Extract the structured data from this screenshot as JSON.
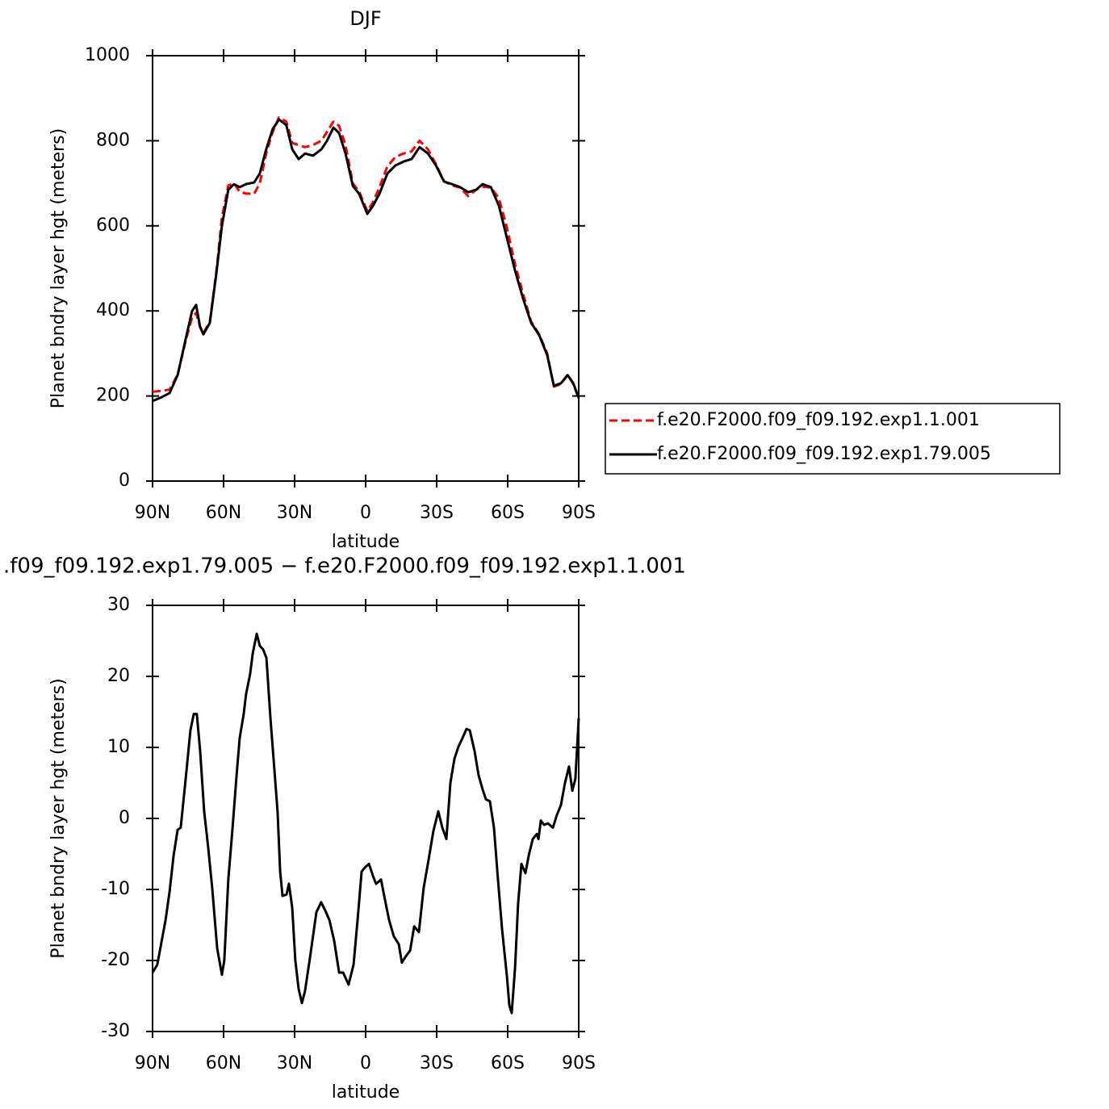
{
  "chart_data": [
    {
      "type": "line",
      "title": "DJF",
      "xlabel": "latitude",
      "ylabel": "Planet bndry layer hgt (meters)",
      "x": [
        90,
        86.2,
        82.8,
        79.4,
        76.0,
        73.3,
        71.6,
        69.9,
        68.5,
        65.8,
        63.1,
        60.7,
        58.0,
        55.6,
        53.2,
        50.5,
        47.1,
        44.7,
        42.0,
        39.3,
        36.6,
        33.5,
        31.0,
        28.3,
        25.6,
        22.2,
        18.7,
        16.4,
        13.6,
        11.2,
        8.5,
        5.4,
        2.7,
        -0.7,
        -3.1,
        -5.8,
        -9.2,
        -12.6,
        -16.0,
        -19.4,
        -22.8,
        -26.3,
        -29.7,
        -33.1,
        -36.5,
        -39.9,
        -43.3,
        -46.7,
        -49.4,
        -52.9,
        -56.3,
        -59.7,
        -63.1,
        -66.5,
        -69.9,
        -73.3,
        -76.7,
        -79.5,
        -82.5,
        -85.3,
        -87.7,
        -90
      ],
      "xlim": [
        90,
        -90
      ],
      "xticks": [
        {
          "value": 90,
          "label": "90N"
        },
        {
          "value": 60,
          "label": "60N"
        },
        {
          "value": 30,
          "label": "30N"
        },
        0,
        {
          "value": -30,
          "label": "30S"
        },
        {
          "value": -60,
          "label": "60S"
        },
        {
          "value": -90,
          "label": "90S"
        }
      ],
      "ylim": [
        0,
        1000
      ],
      "yticks": [
        0,
        200,
        400,
        600,
        800,
        1000
      ],
      "legend": "right",
      "series": [
        {
          "name": "f.e20.F2000.f09_f09.192.exp1.1.001",
          "color": "#ff0000",
          "line_style": "dashed",
          "values": [
            210,
            212,
            215,
            250,
            330,
            385,
            395,
            362,
            348,
            375,
            490,
            620,
            695,
            700,
            680,
            676,
            675,
            700,
            770,
            820,
            855,
            845,
            795,
            790,
            785,
            790,
            800,
            820,
            845,
            835,
            790,
            700,
            680,
            635,
            655,
            690,
            740,
            762,
            770,
            775,
            800,
            780,
            745,
            705,
            695,
            690,
            670,
            685,
            692,
            690,
            665,
            595,
            510,
            440,
            375,
            345,
            300,
            222,
            228,
            250,
            228,
            195
          ]
        },
        {
          "name": "f.e20.F2000.f09_f09.192.exp1.79.005",
          "color": "#000000",
          "line_style": "solid",
          "values": [
            188,
            197,
            207,
            249,
            334,
            400,
            414,
            362,
            345,
            372,
            486,
            600,
            685,
            698,
            691,
            698,
            702,
            723,
            780,
            827,
            850,
            837,
            780,
            757,
            770,
            765,
            780,
            799,
            831,
            818,
            770,
            694,
            675,
            628,
            647,
            675,
            723,
            742,
            751,
            757,
            785,
            770,
            742,
            704,
            698,
            691,
            679,
            685,
            698,
            691,
            647,
            571,
            495,
            429,
            372,
            343,
            296,
            224,
            230,
            249,
            230,
            195
          ]
        }
      ]
    },
    {
      "type": "line",
      "title": ".f09_f09.192.exp1.79.005 − f.e20.F2000.f09_f09.192.exp1.1.001",
      "xlabel": "latitude",
      "ylabel": "Planet bndry layer hgt (meters)",
      "x": [
        90,
        88.0,
        84.5,
        82.8,
        81.1,
        79.4,
        78.1,
        76.0,
        74.0,
        72.6,
        71.3,
        69.9,
        68.2,
        66.5,
        64.8,
        62.7,
        60.7,
        59.7,
        58.0,
        56.2,
        54.5,
        53.2,
        51.5,
        50.5,
        48.8,
        47.7,
        46.0,
        44.7,
        43.3,
        41.9,
        40.2,
        38.5,
        37.2,
        36.1,
        35.1,
        33.4,
        32.4,
        31.0,
        29.7,
        28.3,
        26.9,
        25.6,
        23.2,
        20.8,
        18.8,
        17.0,
        15.3,
        13.3,
        11.2,
        9.5,
        7.2,
        5.1,
        3.4,
        1.7,
        0.3,
        -1.4,
        -3.1,
        -4.4,
        -6.5,
        -8.2,
        -9.9,
        -11.9,
        -14.0,
        -15.3,
        -17.0,
        -18.8,
        -20.5,
        -22.5,
        -24.5,
        -26.6,
        -28.6,
        -30.7,
        -32.4,
        -34.1,
        -35.8,
        -37.5,
        -39.2,
        -40.9,
        -42.6,
        -44.0,
        -46.0,
        -47.7,
        -49.4,
        -50.8,
        -52.5,
        -54.2,
        -55.9,
        -57.6,
        -59.7,
        -60.7,
        -61.7,
        -63.1,
        -64.4,
        -65.8,
        -67.5,
        -68.9,
        -70.6,
        -72.3,
        -73.0,
        -74.0,
        -75.3,
        -77.0,
        -79.1,
        -80.8,
        -82.5,
        -84.2,
        -85.9,
        -87.3,
        -88.6,
        -90
      ],
      "xlim": [
        90,
        -90
      ],
      "xticks": [
        {
          "value": 90,
          "label": "90N"
        },
        {
          "value": 60,
          "label": "60N"
        },
        {
          "value": 30,
          "label": "30N"
        },
        0,
        {
          "value": -30,
          "label": "30S"
        },
        {
          "value": -60,
          "label": "60S"
        },
        {
          "value": -90,
          "label": "90S"
        }
      ],
      "ylim": [
        -30,
        30
      ],
      "yticks": [
        -30,
        -20,
        -10,
        0,
        10,
        20,
        30
      ],
      "series": [
        {
          "color": "#000000",
          "line_style": "solid",
          "values": [
            -21.7,
            -20.6,
            -14.3,
            -10.3,
            -5.2,
            -1.6,
            -1.3,
            5.6,
            12.4,
            14.7,
            14.7,
            9.5,
            1.0,
            -4.1,
            -9.8,
            -18.3,
            -22.0,
            -20.0,
            -8.6,
            -1.3,
            6.1,
            11.3,
            14.7,
            17.5,
            20.3,
            23.2,
            26.0,
            24.3,
            23.8,
            22.6,
            14.1,
            6.7,
            1.0,
            -7.5,
            -10.9,
            -10.7,
            -9.2,
            -12.6,
            -20.0,
            -24.0,
            -26.0,
            -24.3,
            -18.9,
            -13.2,
            -11.8,
            -13.0,
            -14.3,
            -17.2,
            -21.7,
            -21.7,
            -23.4,
            -20.6,
            -14.3,
            -7.5,
            -6.9,
            -6.4,
            -8.1,
            -9.2,
            -8.6,
            -11.5,
            -14.3,
            -16.6,
            -17.7,
            -20.3,
            -19.4,
            -18.6,
            -15.2,
            -16.0,
            -9.8,
            -5.8,
            -1.8,
            1.0,
            -1.3,
            -2.9,
            5.0,
            8.4,
            10.1,
            11.3,
            12.6,
            12.4,
            9.5,
            6.1,
            4.1,
            2.7,
            2.4,
            -1.3,
            -8.6,
            -15.5,
            -22.3,
            -26.3,
            -27.4,
            -21.1,
            -12.0,
            -6.4,
            -7.7,
            -5.2,
            -2.9,
            -2.2,
            -2.9,
            -0.3,
            -0.9,
            -0.7,
            -1.3,
            0.5,
            1.9,
            5.0,
            7.3,
            3.9,
            5.6,
            14.1
          ]
        }
      ]
    }
  ]
}
